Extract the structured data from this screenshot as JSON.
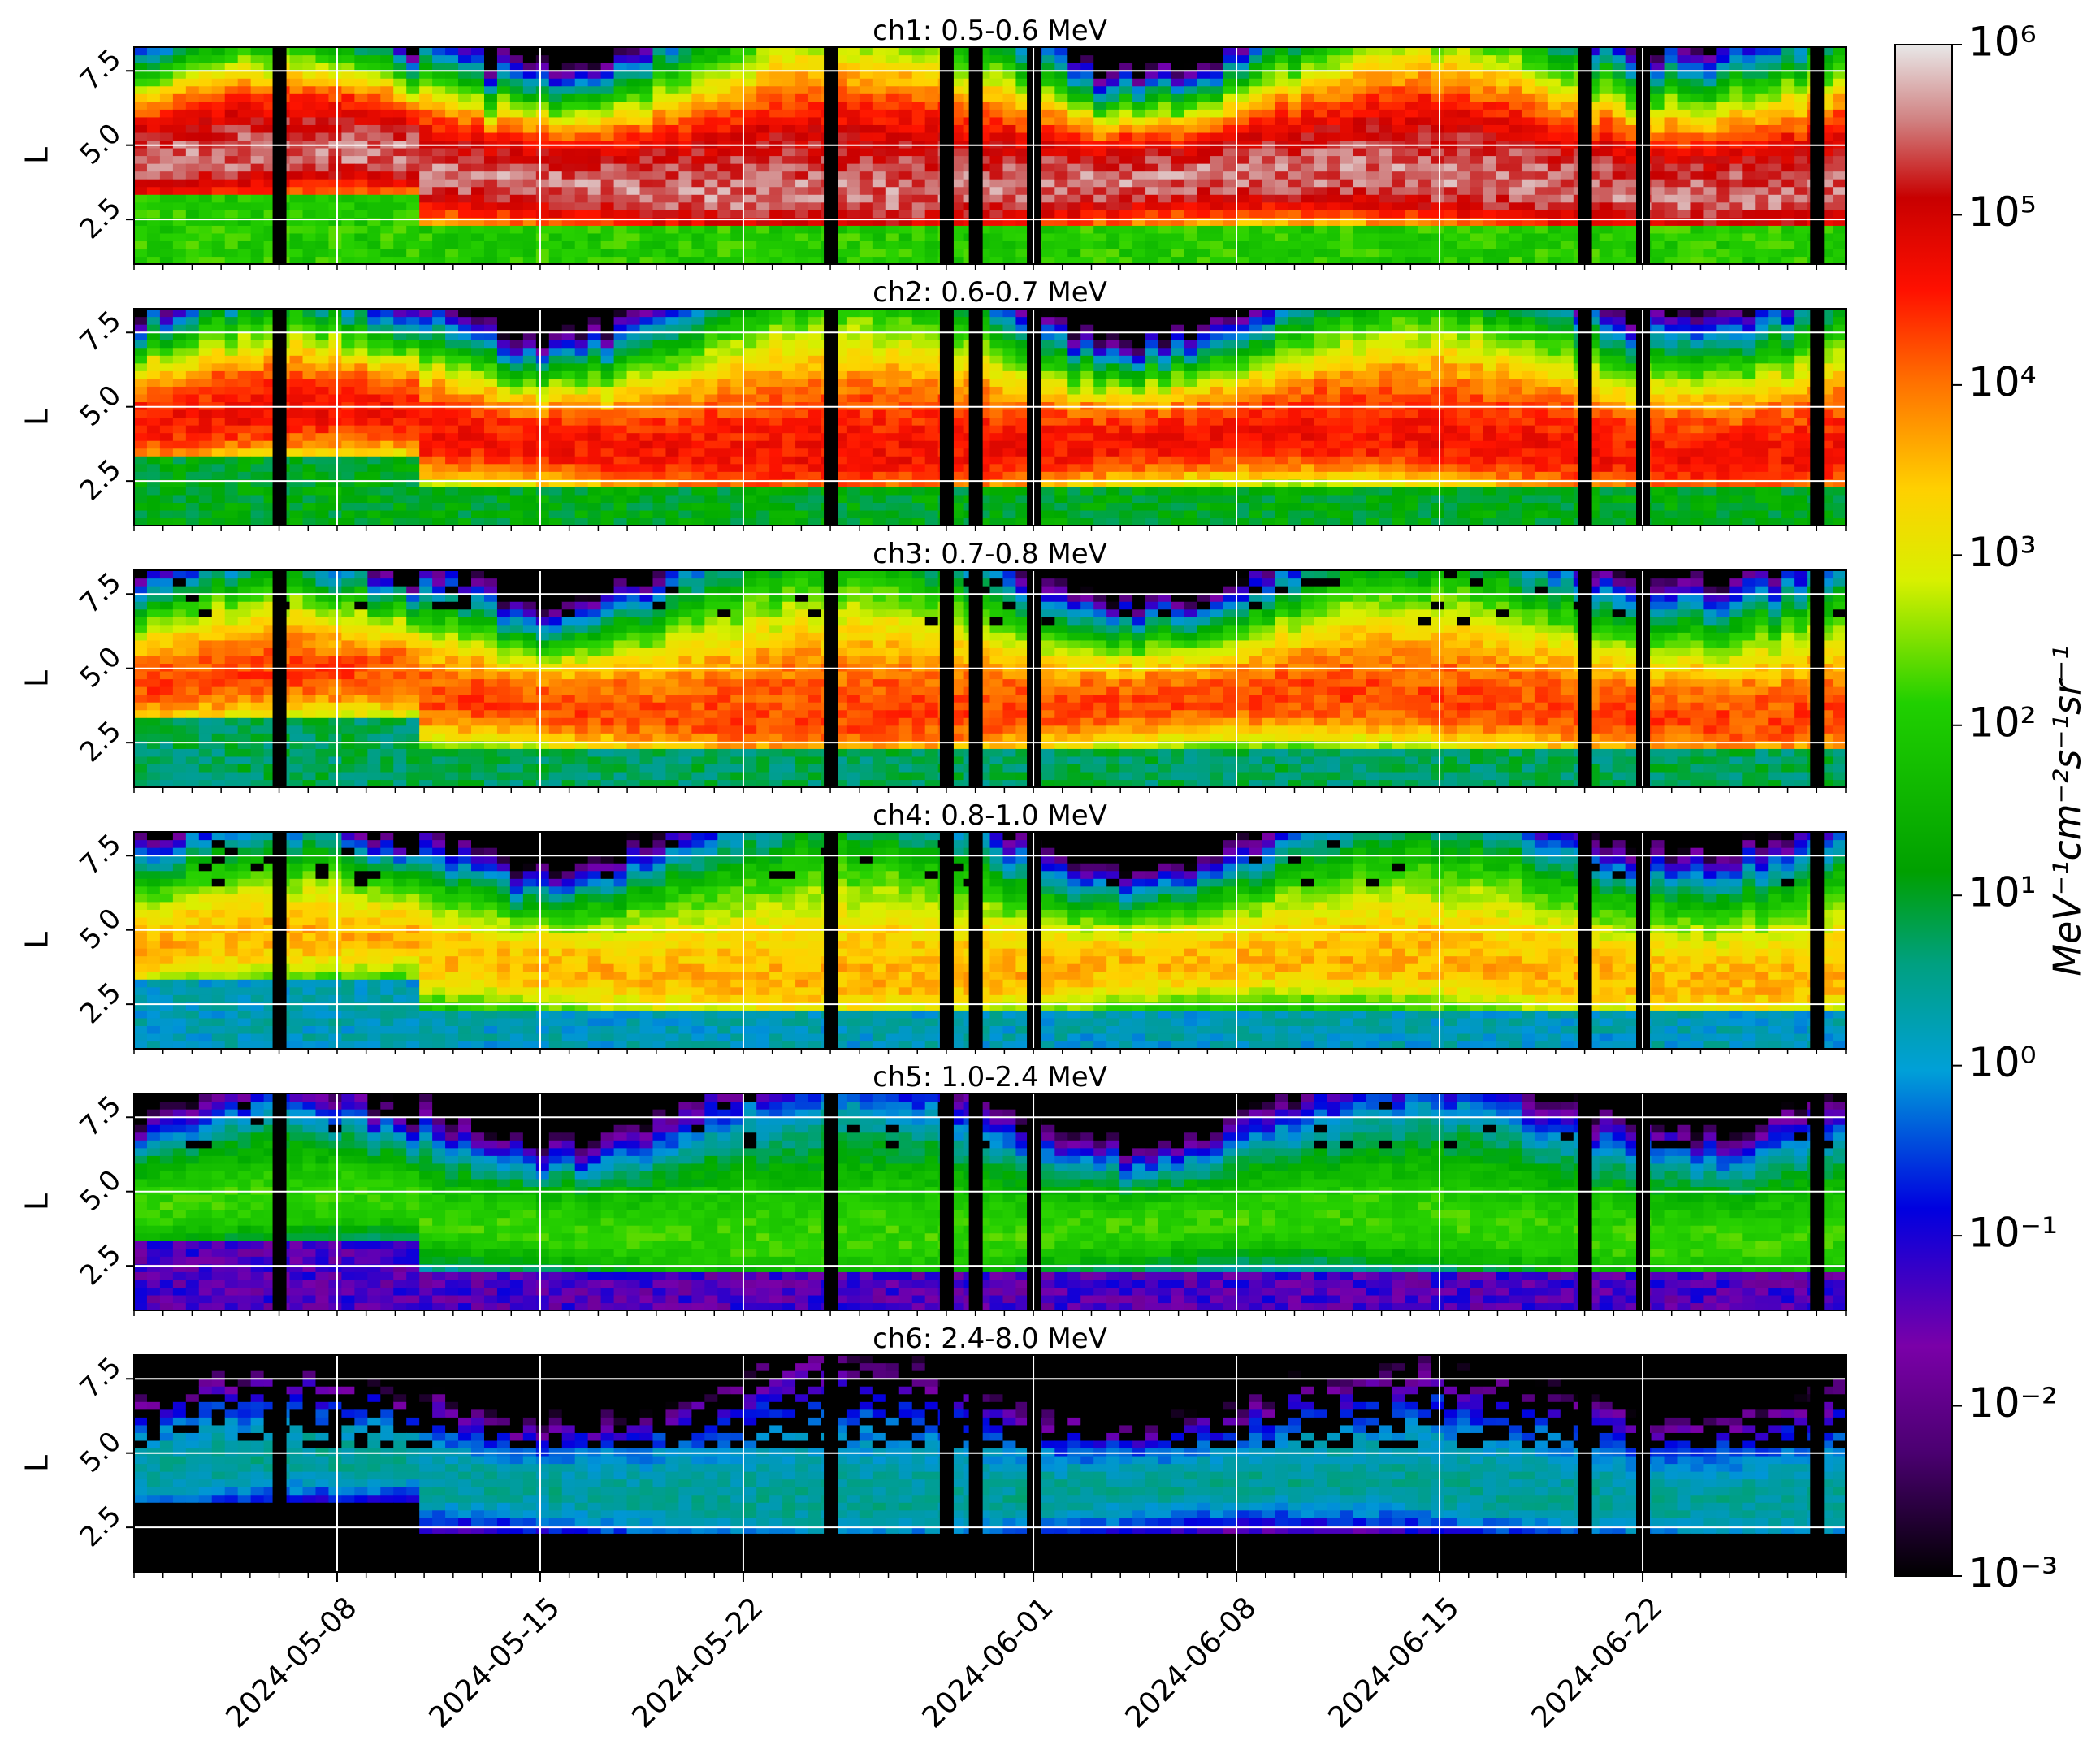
{
  "chart_data": [
    {
      "type": "heatmap",
      "title": "ch1: 0.5-0.6 MeV",
      "ylabel": "L",
      "yticks": [
        "2.5",
        "5.0",
        "7.5"
      ],
      "ylim": [
        1.0,
        8.3
      ],
      "channel_level": 5.0
    },
    {
      "type": "heatmap",
      "title": "ch2: 0.6-0.7 MeV",
      "ylabel": "L",
      "yticks": [
        "2.5",
        "5.0",
        "7.5"
      ],
      "ylim": [
        1.0,
        8.3
      ],
      "channel_level": 4.1
    },
    {
      "type": "heatmap",
      "title": "ch3: 0.7-0.8 MeV",
      "ylabel": "L",
      "yticks": [
        "2.5",
        "5.0",
        "7.5"
      ],
      "ylim": [
        1.0,
        8.3
      ],
      "channel_level": 3.7
    },
    {
      "type": "heatmap",
      "title": "ch4: 0.8-1.0 MeV",
      "ylabel": "L",
      "yticks": [
        "2.5",
        "5.0",
        "7.5"
      ],
      "ylim": [
        1.0,
        8.3
      ],
      "channel_level": 3.0
    },
    {
      "type": "heatmap",
      "title": "ch5: 1.0-2.4 MeV",
      "ylabel": "L",
      "yticks": [
        "2.5",
        "5.0",
        "7.5"
      ],
      "ylim": [
        1.0,
        8.3
      ],
      "channel_level": 1.4
    },
    {
      "type": "heatmap",
      "title": "ch6: 2.4-8.0 MeV",
      "ylabel": "L",
      "yticks": [
        "2.5",
        "5.0",
        "7.5"
      ],
      "ylim": [
        1.0,
        8.3
      ],
      "channel_level": -0.5
    }
  ],
  "x_axis": {
    "start_date": "2024-05-01",
    "end_date": "2024-06-29",
    "tick_labels": [
      "2024-05-08",
      "2024-05-15",
      "2024-05-22",
      "2024-06-01",
      "2024-06-08",
      "2024-06-15",
      "2024-06-22"
    ],
    "tick_dates": [
      "2024-05-08",
      "2024-05-15",
      "2024-05-22",
      "2024-06-01",
      "2024-06-08",
      "2024-06-15",
      "2024-06-22"
    ]
  },
  "data_gaps": [
    "2024-05-06",
    "2024-05-25",
    "2024-05-29",
    "2024-05-30",
    "2024-06-01",
    "2024-06-20",
    "2024-06-22",
    "2024-06-28"
  ],
  "colorbar": {
    "label": "MeV⁻¹cm⁻²s⁻¹sr⁻¹",
    "scale": "log",
    "min_exp": -3,
    "max_exp": 6,
    "tick_labels": [
      "10⁶",
      "10⁵",
      "10⁴",
      "10³",
      "10²",
      "10¹",
      "10⁰",
      "10⁻¹",
      "10⁻²",
      "10⁻³"
    ],
    "colors": [
      "#000000",
      "#7a00a8",
      "#0000e0",
      "#00a0d8",
      "#00b000",
      "#90e800",
      "#ffd000",
      "#ff2000",
      "#c80000",
      "#e0e0e0"
    ]
  }
}
